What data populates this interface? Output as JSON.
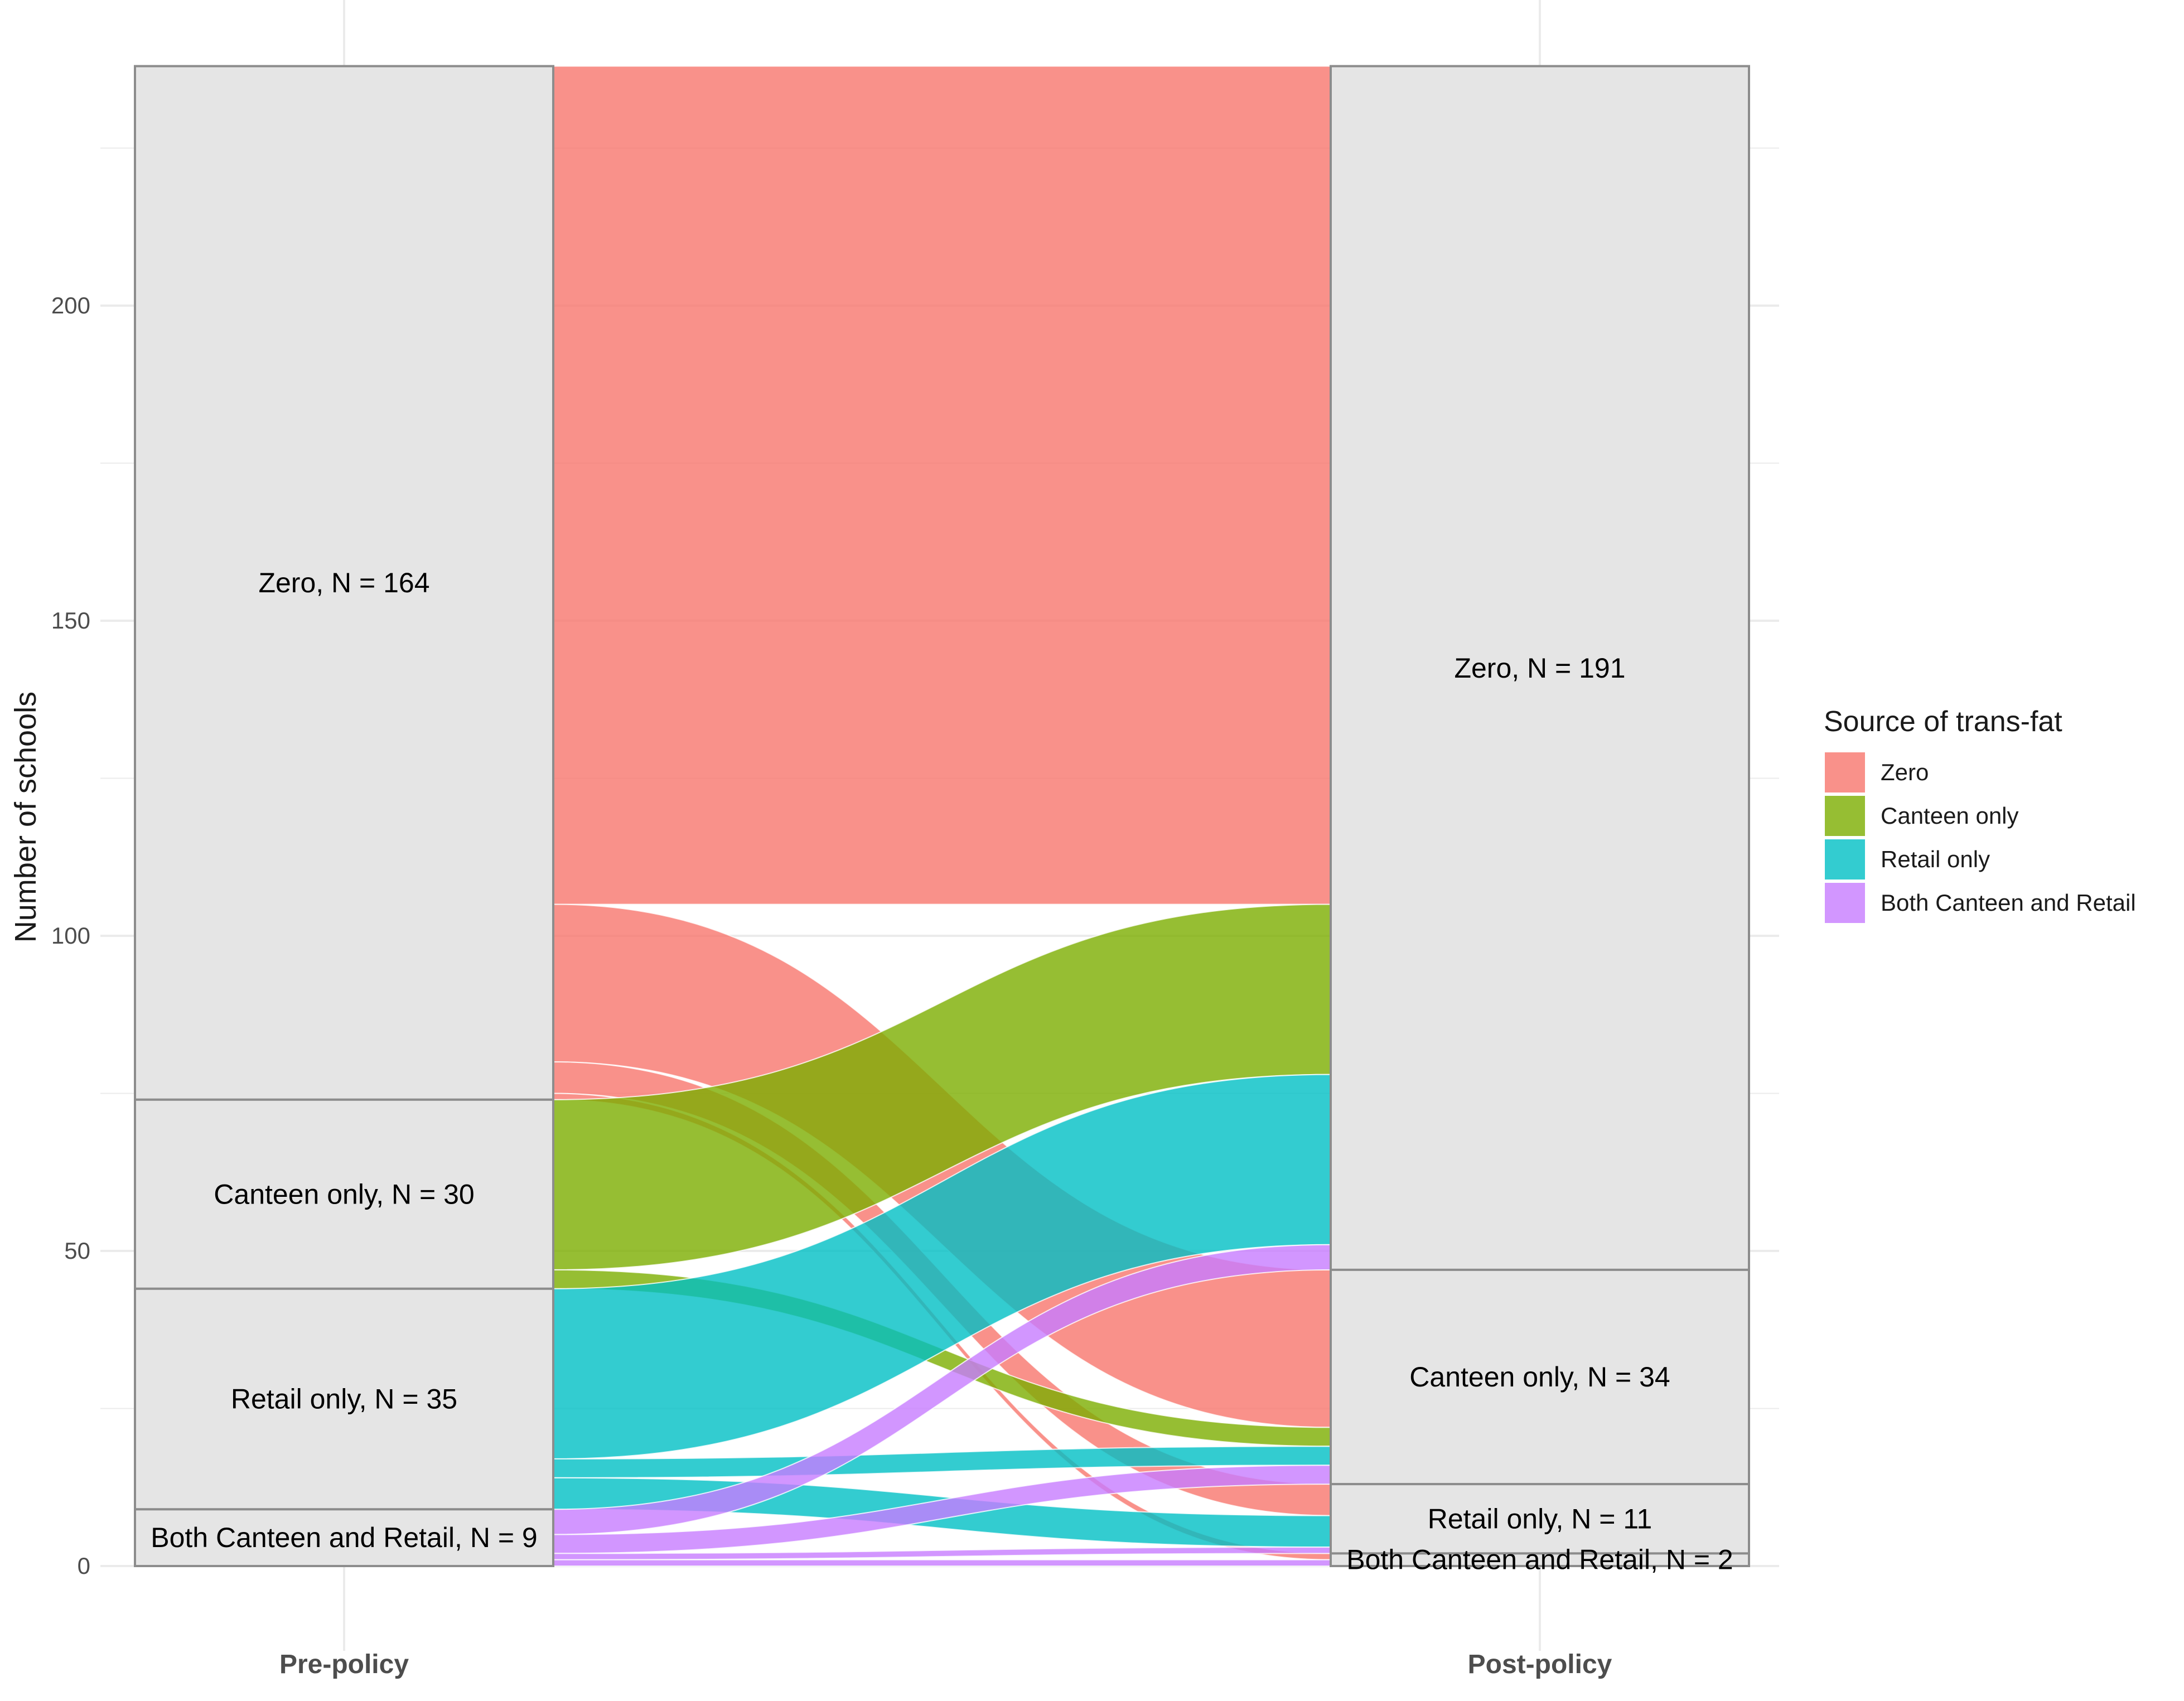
{
  "chart_data": {
    "type": "alluvial",
    "ylabel": "Number of schools",
    "xlabel": "",
    "ylim": [
      0,
      238
    ],
    "y_ticks": [
      0,
      50,
      100,
      150,
      200
    ],
    "axes": [
      "Pre-policy",
      "Post-policy"
    ],
    "legend": {
      "title": "Source of trans-fat",
      "position": "right"
    },
    "categories": [
      "Zero",
      "Canteen only",
      "Retail only",
      "Both Canteen and Retail"
    ],
    "colors": {
      "Zero": "#F8766D",
      "Canteen only": "#7CAE00",
      "Retail only": "#00BFC4",
      "Both Canteen and Retail": "#C77CFF"
    },
    "pre_strata": [
      {
        "category": "Zero",
        "n": 164,
        "label": "Zero, N = 164"
      },
      {
        "category": "Canteen only",
        "n": 30,
        "label": "Canteen only, N = 30"
      },
      {
        "category": "Retail only",
        "n": 35,
        "label": "Retail only, N = 35"
      },
      {
        "category": "Both Canteen and Retail",
        "n": 9,
        "label": "Both Canteen and Retail, N = 9"
      }
    ],
    "post_strata": [
      {
        "category": "Zero",
        "n": 191,
        "label": "Zero, N = 191"
      },
      {
        "category": "Canteen only",
        "n": 34,
        "label": "Canteen only, N = 34"
      },
      {
        "category": "Retail only",
        "n": 11,
        "label": "Retail only, N = 11"
      },
      {
        "category": "Both Canteen and Retail",
        "n": 2,
        "label": "Both Canteen and Retail, N = 2"
      }
    ],
    "flows": [
      {
        "from": "Zero",
        "to": "Zero",
        "value": 133
      },
      {
        "from": "Zero",
        "to": "Canteen only",
        "value": 25
      },
      {
        "from": "Zero",
        "to": "Retail only",
        "value": 5
      },
      {
        "from": "Zero",
        "to": "Both Canteen and Retail",
        "value": 1
      },
      {
        "from": "Canteen only",
        "to": "Zero",
        "value": 27
      },
      {
        "from": "Canteen only",
        "to": "Canteen only",
        "value": 3
      },
      {
        "from": "Retail only",
        "to": "Zero",
        "value": 27
      },
      {
        "from": "Retail only",
        "to": "Canteen only",
        "value": 3
      },
      {
        "from": "Retail only",
        "to": "Retail only",
        "value": 5
      },
      {
        "from": "Both Canteen and Retail",
        "to": "Zero",
        "value": 4
      },
      {
        "from": "Both Canteen and Retail",
        "to": "Canteen only",
        "value": 3
      },
      {
        "from": "Both Canteen and Retail",
        "to": "Retail only",
        "value": 1
      },
      {
        "from": "Both Canteen and Retail",
        "to": "Both Canteen and Retail",
        "value": 1
      }
    ]
  }
}
